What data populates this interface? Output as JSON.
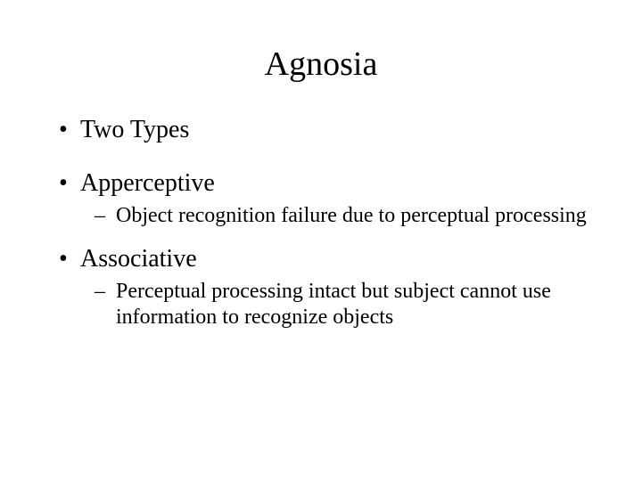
{
  "slide": {
    "title": "Agnosia",
    "bullets": {
      "b1": "Two Types",
      "b2": "Apperceptive",
      "b2_sub": "Object recognition failure due to perceptual processing",
      "b3": "Associative",
      "b3_sub": "Perceptual processing intact but subject cannot use information to recognize objects"
    },
    "styling": {
      "background_color": "#ffffff",
      "text_color": "#000000",
      "title_fontsize": 38,
      "bullet_l1_fontsize": 28,
      "bullet_l2_fontsize": 24,
      "font_family": "Times New Roman"
    }
  }
}
